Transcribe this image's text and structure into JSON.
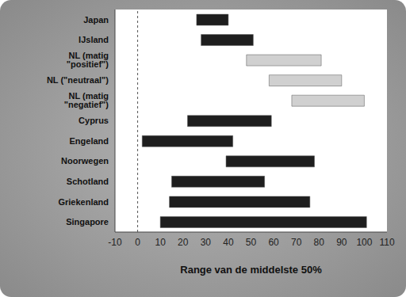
{
  "chart_data": {
    "type": "bar",
    "orientation": "horizontal",
    "x_label": "Range van de middelste 50%",
    "categories": [
      "Japan",
      "IJsland",
      "NL (matig \"positief\")",
      "NL (\"neutraal\")",
      "NL (matig \"negatief\")",
      "Cyprus",
      "Engeland",
      "Noorwegen",
      "Schotland",
      "Griekenland",
      "Singapore"
    ],
    "values": [
      [
        26,
        40
      ],
      [
        28,
        51
      ],
      [
        48,
        81
      ],
      [
        58,
        90
      ],
      [
        68,
        100
      ],
      [
        22,
        59
      ],
      [
        2,
        42
      ],
      [
        39,
        78
      ],
      [
        15,
        56
      ],
      [
        14,
        76
      ],
      [
        10,
        101
      ]
    ],
    "colors": [
      "#1e1e1e",
      "#1e1e1e",
      "#d0d0d0",
      "#d0d0d0",
      "#d0d0d0",
      "#1e1e1e",
      "#1e1e1e",
      "#1e1e1e",
      "#1e1e1e",
      "#1e1e1e",
      "#1e1e1e"
    ],
    "xlim": [
      -10,
      110
    ],
    "xticks": [
      -10,
      0,
      10,
      20,
      30,
      40,
      50,
      60,
      70,
      80,
      90,
      100,
      110
    ],
    "reference_x": 0,
    "grid": false
  }
}
